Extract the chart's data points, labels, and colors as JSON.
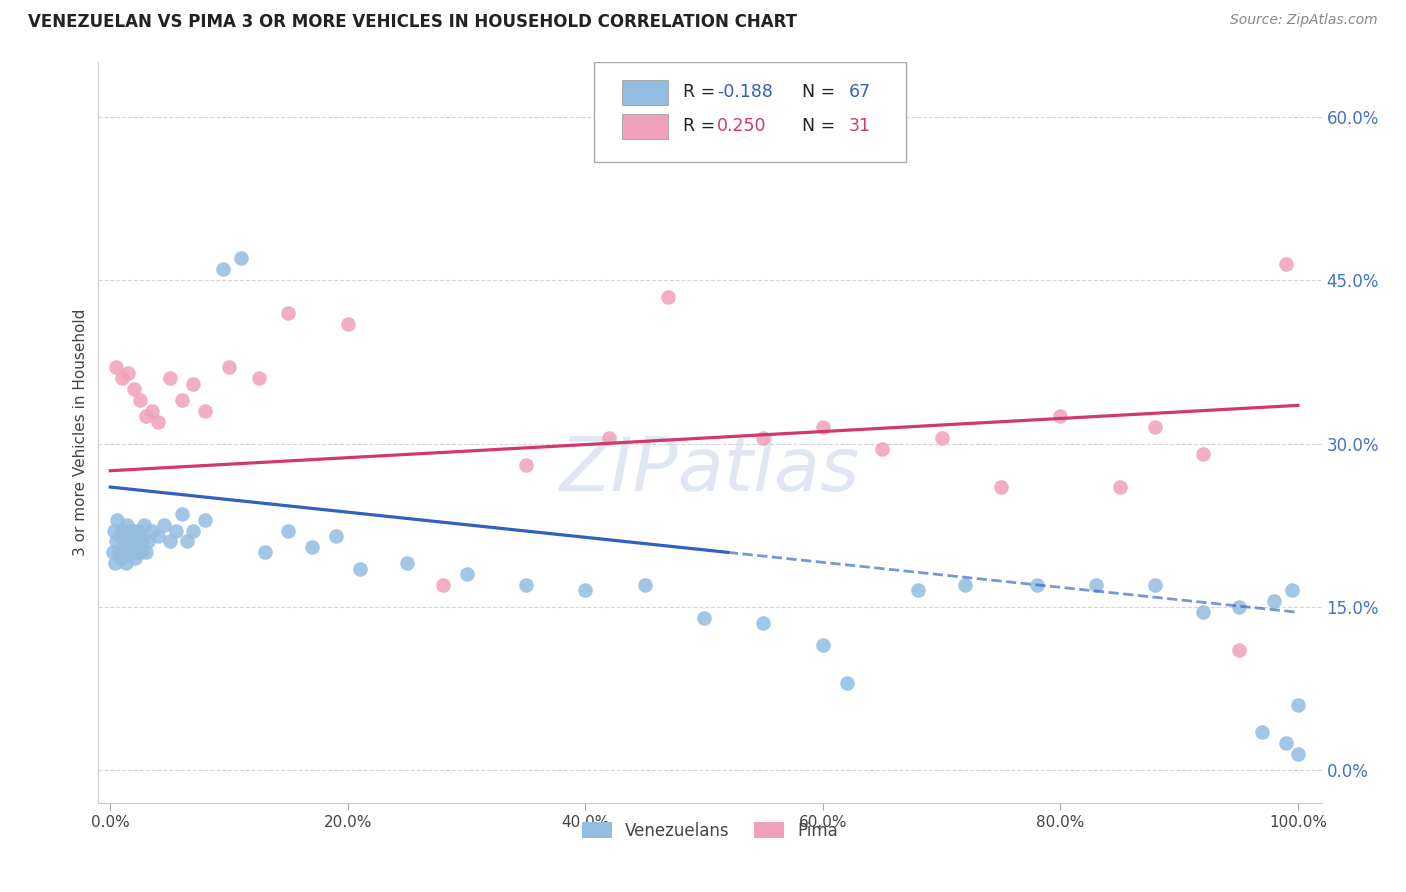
{
  "title": "VENEZUELAN VS PIMA 3 OR MORE VEHICLES IN HOUSEHOLD CORRELATION CHART",
  "source": "Source: ZipAtlas.com",
  "ylabel": "3 or more Vehicles in Household",
  "xlim": [
    -1,
    102
  ],
  "ylim": [
    -3,
    65
  ],
  "yticks": [
    0,
    15,
    30,
    45,
    60
  ],
  "ytick_labels": [
    "0.0%",
    "15.0%",
    "30.0%",
    "45.0%",
    "60.0%"
  ],
  "xticks": [
    0,
    20,
    40,
    60,
    80,
    100
  ],
  "xtick_labels": [
    "0.0%",
    "20.0%",
    "40.0%",
    "60.0%",
    "80.0%",
    "100.0%"
  ],
  "venezuelan_color": "#92bce0",
  "pima_color": "#f0a0b8",
  "venezuelan_line_color": "#3060c0",
  "pima_line_color": "#d03870",
  "venezuelan_r": -0.188,
  "venezuelan_n": 67,
  "pima_r": 0.25,
  "pima_n": 31,
  "venezuelan_x": [
    0.2,
    0.3,
    0.4,
    0.5,
    0.6,
    0.7,
    0.8,
    0.9,
    1.0,
    1.1,
    1.2,
    1.3,
    1.4,
    1.5,
    1.6,
    1.7,
    1.8,
    1.9,
    2.0,
    2.1,
    2.2,
    2.3,
    2.4,
    2.5,
    2.6,
    2.7,
    2.8,
    3.0,
    3.2,
    3.5,
    4.0,
    4.5,
    5.0,
    5.5,
    6.0,
    6.5,
    7.0,
    8.0,
    9.5,
    11.0,
    13.0,
    15.0,
    17.0,
    19.0,
    21.0,
    25.0,
    30.0,
    35.0,
    40.0,
    45.0,
    50.0,
    55.0,
    60.0,
    62.0,
    68.0,
    72.0,
    78.0,
    83.0,
    88.0,
    92.0,
    95.0,
    97.0,
    98.0,
    99.0,
    99.5,
    100.0,
    100.0
  ],
  "venezuelan_y": [
    20.0,
    22.0,
    19.0,
    21.0,
    23.0,
    20.0,
    21.5,
    19.5,
    22.0,
    20.5,
    21.0,
    19.0,
    22.5,
    20.0,
    21.5,
    22.0,
    20.0,
    21.0,
    22.0,
    19.5,
    21.0,
    20.0,
    22.0,
    21.5,
    20.0,
    21.0,
    22.5,
    20.0,
    21.0,
    22.0,
    21.5,
    22.5,
    21.0,
    22.0,
    23.5,
    21.0,
    22.0,
    23.0,
    46.0,
    47.0,
    20.0,
    22.0,
    20.5,
    21.5,
    18.5,
    19.0,
    18.0,
    17.0,
    16.5,
    17.0,
    14.0,
    13.5,
    11.5,
    8.0,
    16.5,
    17.0,
    17.0,
    17.0,
    17.0,
    14.5,
    15.0,
    3.5,
    15.5,
    2.5,
    16.5,
    6.0,
    1.5
  ],
  "pima_x": [
    0.5,
    1.0,
    1.5,
    2.0,
    2.5,
    3.0,
    3.5,
    4.0,
    5.0,
    6.0,
    7.0,
    8.0,
    10.0,
    12.5,
    15.0,
    20.0,
    28.0,
    35.0,
    42.0,
    47.0,
    55.0,
    60.0,
    65.0,
    70.0,
    75.0,
    80.0,
    85.0,
    88.0,
    92.0,
    95.0,
    99.0
  ],
  "pima_y": [
    37.0,
    36.0,
    36.5,
    35.0,
    34.0,
    32.5,
    33.0,
    32.0,
    36.0,
    34.0,
    35.5,
    33.0,
    37.0,
    36.0,
    42.0,
    41.0,
    17.0,
    28.0,
    30.5,
    43.5,
    30.5,
    31.5,
    29.5,
    30.5,
    26.0,
    32.5,
    26.0,
    31.5,
    29.0,
    11.0,
    46.5
  ],
  "background_color": "#ffffff",
  "grid_color": "#cccccc",
  "right_tick_color": "#4472c4",
  "ven_line_x0": 0,
  "ven_line_y0": 26.0,
  "ven_line_x1": 52.0,
  "ven_line_y1": 20.0,
  "ven_dash_x0": 52.0,
  "ven_dash_y0": 20.0,
  "ven_dash_x1": 100.0,
  "ven_dash_y1": 14.5,
  "pima_line_x0": 0,
  "pima_line_y0": 27.5,
  "pima_line_x1": 100,
  "pima_line_y1": 33.5
}
